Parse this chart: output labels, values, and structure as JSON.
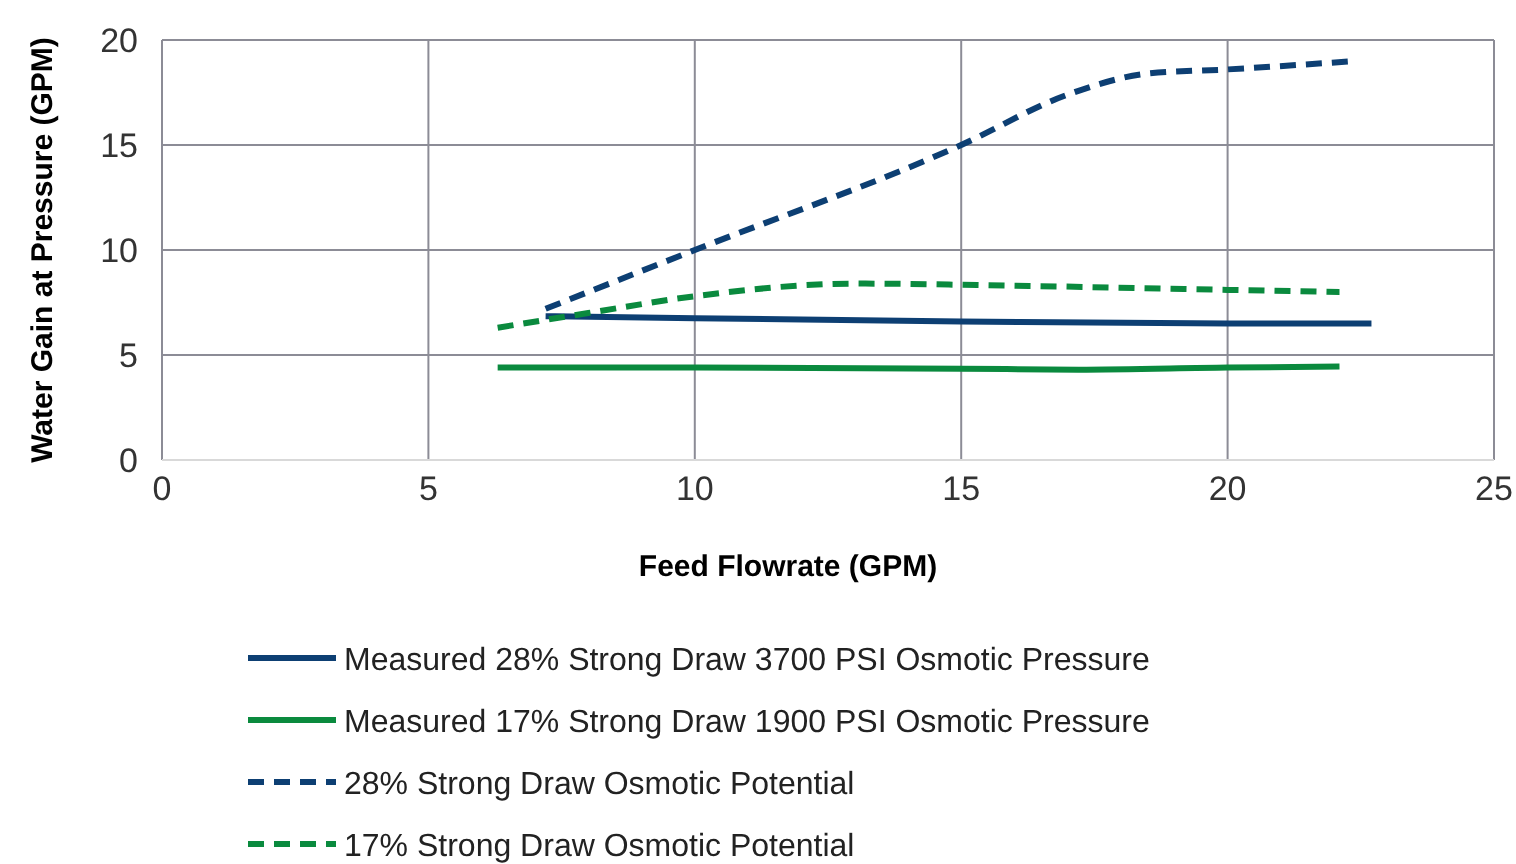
{
  "chart_data": {
    "type": "line",
    "xlabel": "Feed Flowrate (GPM)",
    "ylabel": "Water Gain at Pressure (GPM)",
    "xlim": [
      0,
      25
    ],
    "xticks": [
      0,
      5,
      10,
      15,
      20,
      25
    ],
    "ylim": [
      0,
      20
    ],
    "yticks": [
      0,
      5,
      10,
      15,
      20
    ],
    "grid": true,
    "legend": "bottom",
    "marker": "none",
    "series": [
      {
        "name": "Measured 28% Strong Draw 3700 PSI Osmotic Pressure",
        "color": "#0d3f73",
        "line_style": "solid",
        "x": [
          7.2,
          10,
          15,
          20,
          22.7
        ],
        "values": [
          6.85,
          6.75,
          6.6,
          6.5,
          6.5
        ]
      },
      {
        "name": "Measured 17% Strong Draw 1900 PSI Osmotic Pressure",
        "color": "#0a8a3e",
        "line_style": "solid",
        "x": [
          6.3,
          10,
          15,
          17.2,
          20,
          22.1
        ],
        "values": [
          4.4,
          4.4,
          4.35,
          4.3,
          4.4,
          4.45
        ]
      },
      {
        "name": "28% Strong Draw Osmotic Potential",
        "color": "#0d3f73",
        "line_style": "dashed",
        "x": [
          7.2,
          10,
          15,
          17,
          18.5,
          20,
          22.4
        ],
        "values": [
          7.2,
          10,
          15,
          17.4,
          18.4,
          18.6,
          19.0
        ]
      },
      {
        "name": "17% Strong Draw Osmotic Potential",
        "color": "#0a8a3e",
        "line_style": "dashed",
        "x": [
          6.3,
          8,
          10,
          13,
          16,
          20,
          22.1
        ],
        "values": [
          6.3,
          7.0,
          7.8,
          8.4,
          8.3,
          8.1,
          8.0
        ]
      }
    ]
  }
}
